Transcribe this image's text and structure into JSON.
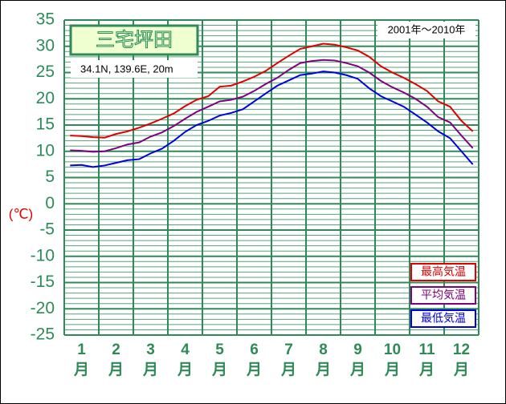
{
  "chart_data": {
    "type": "line",
    "title": "三宅坪田",
    "subtitle": "34.1N,  139.6E,  20m",
    "period": "2001年～2010年",
    "ylabel": "(℃)",
    "categories": [
      "1月",
      "2月",
      "3月",
      "4月",
      "5月",
      "6月",
      "7月",
      "8月",
      "9月",
      "10月",
      "11月",
      "12月"
    ],
    "x": [
      0.17,
      0.5,
      0.83,
      1.17,
      1.5,
      1.83,
      2.17,
      2.5,
      2.83,
      3.17,
      3.5,
      3.83,
      4.17,
      4.5,
      4.83,
      5.17,
      5.5,
      5.83,
      6.17,
      6.5,
      6.83,
      7.17,
      7.5,
      7.83,
      8.17,
      8.5,
      8.83,
      9.17,
      9.5,
      9.83,
      10.17,
      10.5,
      10.83,
      11.17,
      11.5,
      11.83
    ],
    "series": [
      {
        "name": "最高気温",
        "color": "#e00000",
        "values": [
          13.0,
          12.9,
          12.7,
          12.6,
          13.3,
          13.8,
          14.5,
          15.3,
          16.2,
          17.2,
          18.6,
          19.8,
          20.5,
          22.3,
          22.5,
          23.3,
          24.2,
          25.3,
          26.8,
          28.2,
          29.5,
          30.0,
          30.5,
          30.3,
          29.8,
          29.2,
          28.0,
          26.2,
          25.0,
          24.0,
          22.8,
          21.5,
          19.5,
          18.5,
          15.8,
          13.8
        ]
      },
      {
        "name": "平均気温",
        "color": "#800080",
        "values": [
          10.2,
          10.1,
          9.9,
          10.0,
          10.6,
          11.3,
          11.7,
          12.8,
          13.6,
          14.8,
          16.2,
          17.5,
          18.5,
          19.5,
          19.8,
          20.4,
          21.5,
          22.8,
          24.0,
          25.5,
          26.8,
          27.2,
          27.4,
          27.3,
          26.8,
          26.2,
          25.0,
          23.4,
          22.2,
          21.2,
          20.0,
          18.5,
          16.5,
          15.5,
          13.0,
          10.6
        ]
      },
      {
        "name": "最低気温",
        "color": "#0000e0",
        "values": [
          7.3,
          7.4,
          7.0,
          7.3,
          7.8,
          8.3,
          8.5,
          9.6,
          10.5,
          12.0,
          13.7,
          15.0,
          15.8,
          16.8,
          17.3,
          18.0,
          19.5,
          21.0,
          22.5,
          23.5,
          24.5,
          24.8,
          25.2,
          25.0,
          24.5,
          23.8,
          22.0,
          20.5,
          19.5,
          18.5,
          17.0,
          15.5,
          13.8,
          12.5,
          10.0,
          7.5
        ]
      }
    ],
    "xlim": [
      0,
      12
    ],
    "xticks": [
      0,
      1,
      2,
      3,
      4,
      5,
      6,
      7,
      8,
      9,
      10,
      11,
      12
    ],
    "ylim": [
      -25,
      35
    ],
    "yticks": [
      35,
      30,
      25,
      20,
      15,
      10,
      5,
      0,
      -5,
      -10,
      -15,
      -20,
      -25
    ],
    "y_minor_step": 1,
    "grid": true,
    "grid_color": "#2e8b57",
    "legend": "lower right"
  }
}
